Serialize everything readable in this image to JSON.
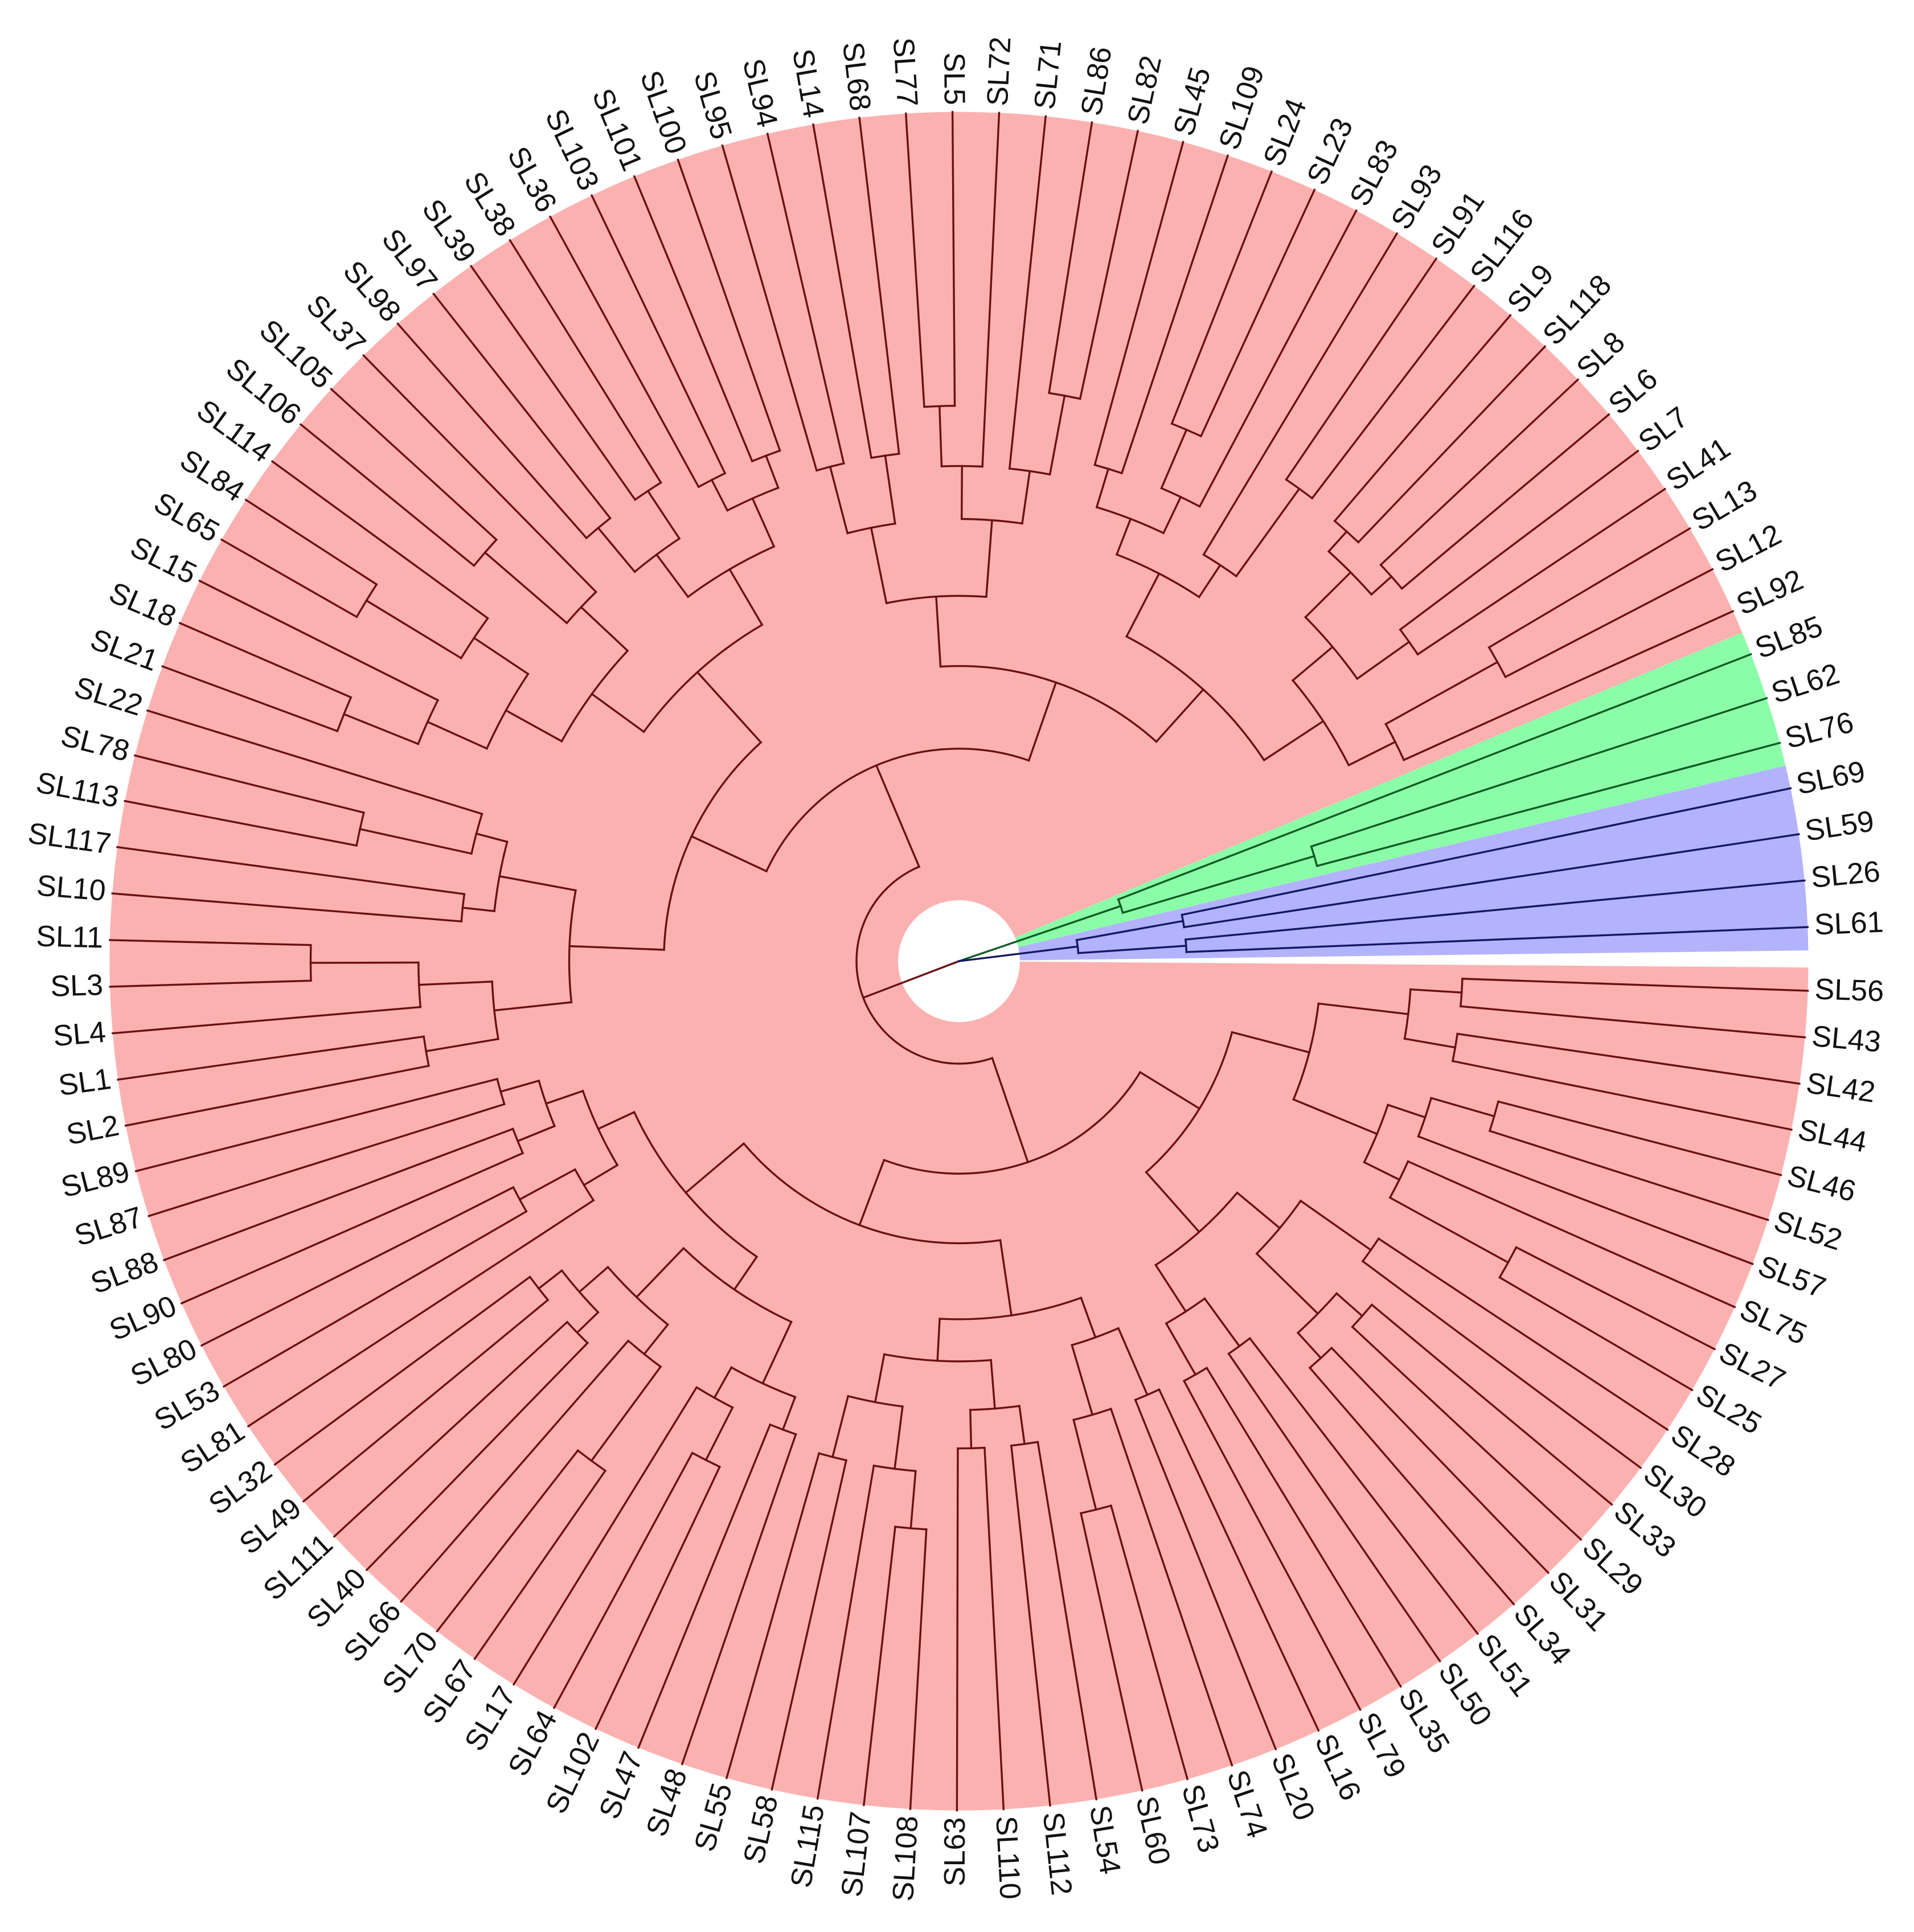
{
  "figure": {
    "type": "circular-phylogenetic-tree",
    "background_color": "#ffffff",
    "label_color": "#111111"
  },
  "clades": [
    {
      "id": "red",
      "fill": "#fcb1b1",
      "branch_color": "#6b0f0f"
    },
    {
      "id": "green",
      "fill": "#8bfda9",
      "branch_color": "#0d5c22"
    },
    {
      "id": "blue",
      "fill": "#b3b3fc",
      "branch_color": "#151860"
    }
  ],
  "leaves": [
    "SL56",
    "SL43",
    "SL42",
    "SL44",
    "SL46",
    "SL52",
    "SL57",
    "SL75",
    "SL27",
    "SL25",
    "SL28",
    "SL30",
    "SL33",
    "SL29",
    "SL31",
    "SL34",
    "SL51",
    "SL50",
    "SL35",
    "SL79",
    "SL16",
    "SL20",
    "SL74",
    "SL73",
    "SL60",
    "SL54",
    "SL112",
    "SL110",
    "SL63",
    "SL108",
    "SL107",
    "SL115",
    "SL58",
    "SL55",
    "SL48",
    "SL47",
    "SL102",
    "SL64",
    "SL17",
    "SL67",
    "SL70",
    "SL66",
    "SL40",
    "SL111",
    "SL49",
    "SL32",
    "SL81",
    "SL53",
    "SL80",
    "SL90",
    "SL88",
    "SL87",
    "SL89",
    "SL2",
    "SL1",
    "SL4",
    "SL3",
    "SL11",
    "SL10",
    "SL117",
    "SL113",
    "SL78",
    "SL22",
    "SL21",
    "SL18",
    "SL15",
    "SL65",
    "SL84",
    "SL114",
    "SL106",
    "SL105",
    "SL37",
    "SL98",
    "SL97",
    "SL39",
    "SL38",
    "SL36",
    "SL103",
    "SL101",
    "SL100",
    "SL95",
    "SL94",
    "SL14",
    "SL68",
    "SL77",
    "SL5",
    "SL72",
    "SL71",
    "SL86",
    "SL82",
    "SL45",
    "SL109",
    "SL24",
    "SL23",
    "SL83",
    "SL93",
    "SL91",
    "SL116",
    "SL9",
    "SL118",
    "SL8",
    "SL6",
    "SL7",
    "SL41",
    "SL13",
    "SL12",
    "SL92",
    "SL85",
    "SL62",
    "SL76",
    "SL69",
    "SL59",
    "SL26",
    "SL61"
  ]
}
